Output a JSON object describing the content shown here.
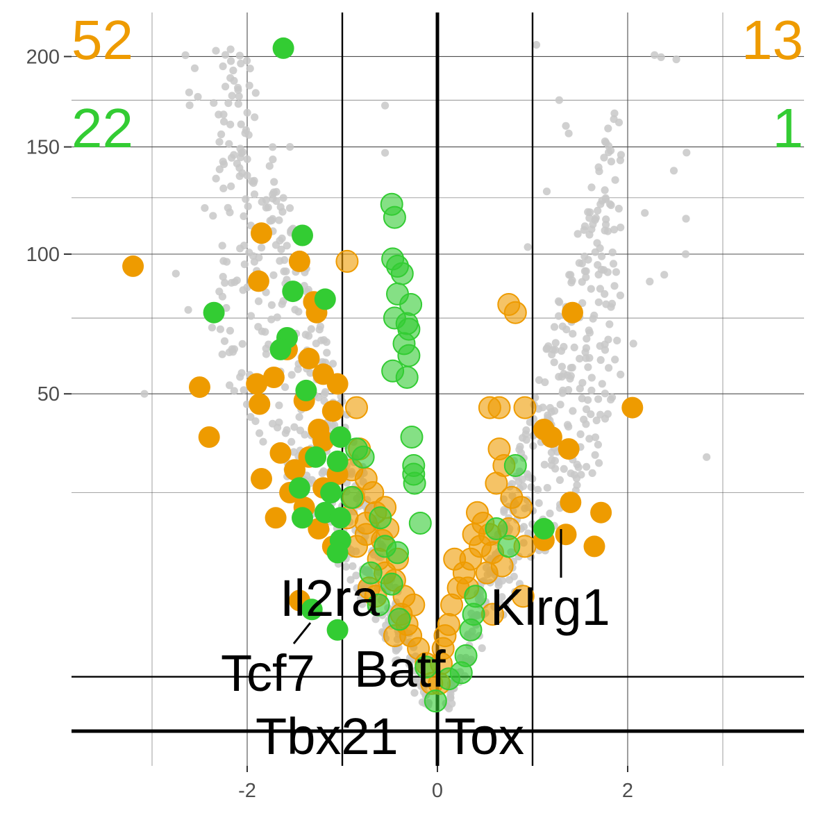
{
  "chart_data": {
    "type": "scatter",
    "title": "",
    "xlabel": "",
    "ylabel": "",
    "xlim": [
      -3.35,
      3.85
    ],
    "ylim": [
      -2,
      210
    ],
    "y_scale": "square-root",
    "grid": true,
    "x_ticks": [
      {
        "value": -2,
        "label": "-2"
      },
      {
        "value": 0,
        "label": "0"
      },
      {
        "value": 2,
        "label": "2"
      }
    ],
    "y_ticks": [
      {
        "value": 50,
        "label": "50"
      },
      {
        "value": 100,
        "label": "100"
      },
      {
        "value": 150,
        "label": "150"
      },
      {
        "value": 200,
        "label": "200"
      }
    ],
    "reference_lines": {
      "vertical": [
        -1,
        0,
        1
      ],
      "horizontal": [
        0,
        1.3
      ]
    },
    "colors": {
      "background_points": "#c8c8c8",
      "highlight_orange": "#ee9b00",
      "highlight_green": "#33cc33",
      "grid": "#4d4d4d",
      "reference": "#000000"
    },
    "corner_counts": [
      {
        "position": "top-left",
        "text": "52",
        "color": "#ee9b00"
      },
      {
        "position": "top-left",
        "text": "22",
        "color": "#33cc33"
      },
      {
        "position": "top-right",
        "text": "13",
        "color": "#ee9b00"
      },
      {
        "position": "top-right",
        "text": "1",
        "color": "#33cc33"
      }
    ],
    "labelled_genes": [
      {
        "gene": "Il2ra",
        "x": -1.32,
        "y": 10
      },
      {
        "gene": "Tcf7",
        "x": -1.32,
        "y": 10
      },
      {
        "gene": "Batf",
        "x": -0.1,
        "y": 2
      },
      {
        "gene": "Tbx21",
        "x": 0,
        "y": 0.6
      },
      {
        "gene": "Tox",
        "x": 0,
        "y": 0.6
      },
      {
        "gene": "Klrg1",
        "x": 1.32,
        "y": 22
      }
    ],
    "series": [
      {
        "group": "orange",
        "color": "#ee9b00",
        "points": [
          [
            -3.2,
            95
          ],
          [
            -1.85,
            109
          ],
          [
            -1.88,
            89
          ],
          [
            -1.45,
            97
          ],
          [
            -1.3,
            81
          ],
          [
            -1.27,
            77
          ],
          [
            -1.35,
            61
          ],
          [
            -2.5,
            52
          ],
          [
            -2.4,
            38
          ],
          [
            -1.9,
            53
          ],
          [
            -1.87,
            47
          ],
          [
            -1.72,
            55
          ],
          [
            -1.58,
            64
          ],
          [
            -1.4,
            48
          ],
          [
            -1.2,
            56
          ],
          [
            -1.05,
            53
          ],
          [
            -1.1,
            45
          ],
          [
            -1.25,
            40
          ],
          [
            -1.65,
            34
          ],
          [
            -1.85,
            28
          ],
          [
            -1.5,
            30
          ],
          [
            -1.35,
            33
          ],
          [
            -1.2,
            37
          ],
          [
            -1.55,
            25
          ],
          [
            -1.4,
            22
          ],
          [
            -1.7,
            20
          ],
          [
            -1.2,
            26
          ],
          [
            -1.05,
            29
          ],
          [
            -1.25,
            18
          ],
          [
            -1.1,
            15
          ],
          [
            -1.45,
            7.5
          ],
          [
            -0.85,
            46
          ],
          [
            -0.82,
            35
          ],
          [
            -0.9,
            30
          ],
          [
            -0.75,
            28
          ],
          [
            -0.68,
            25
          ],
          [
            -0.55,
            22
          ],
          [
            -0.95,
            20
          ],
          [
            -0.75,
            19
          ],
          [
            -0.85,
            15
          ],
          [
            -0.62,
            13
          ],
          [
            -0.55,
            11
          ],
          [
            -0.45,
            10
          ],
          [
            -0.72,
            9
          ],
          [
            -0.65,
            8
          ],
          [
            -0.38,
            6
          ],
          [
            -0.32,
            5
          ],
          [
            -0.28,
            4
          ],
          [
            -0.2,
            3
          ],
          [
            -0.12,
            2
          ],
          [
            -0.06,
            1
          ],
          [
            -0.45,
            4
          ],
          [
            -0.75,
            17
          ],
          [
            -0.58,
            16
          ],
          [
            -0.88,
            24
          ],
          [
            -0.65,
            21
          ],
          [
            -0.95,
            97
          ],
          [
            0.75,
            80
          ],
          [
            0.82,
            77
          ],
          [
            1.42,
            77
          ],
          [
            2.05,
            46
          ],
          [
            0.55,
            46
          ],
          [
            0.65,
            46
          ],
          [
            0.92,
            46
          ],
          [
            1.12,
            40
          ],
          [
            1.2,
            38
          ],
          [
            1.38,
            35
          ],
          [
            0.65,
            35
          ],
          [
            0.7,
            31
          ],
          [
            0.62,
            27
          ],
          [
            0.78,
            24
          ],
          [
            0.88,
            22
          ],
          [
            1.4,
            23
          ],
          [
            1.72,
            21
          ],
          [
            1.35,
            17
          ],
          [
            1.65,
            15
          ],
          [
            1.12,
            16
          ],
          [
            0.92,
            15
          ],
          [
            0.42,
            21
          ],
          [
            0.55,
            17
          ],
          [
            0.45,
            15
          ],
          [
            0.35,
            13
          ],
          [
            0.28,
            11
          ],
          [
            0.22,
            9
          ],
          [
            0.15,
            7
          ],
          [
            0.12,
            5
          ],
          [
            0.08,
            4
          ],
          [
            0.06,
            3
          ],
          [
            0.04,
            2
          ],
          [
            0.02,
            1
          ],
          [
            0.9,
            8
          ],
          [
            0.58,
            6
          ],
          [
            0.48,
            19
          ],
          [
            0.38,
            17
          ],
          [
            0.68,
            12
          ],
          [
            0.52,
            11
          ],
          [
            0.18,
            13
          ],
          [
            0.58,
            14
          ],
          [
            0.75,
            18
          ],
          [
            0.32,
            9
          ],
          [
            -0.35,
            8
          ],
          [
            -0.25,
            7
          ],
          [
            -0.42,
            13
          ],
          [
            -0.52,
            18
          ]
        ]
      },
      {
        "group": "green",
        "color": "#33cc33",
        "points": [
          [
            -1.62,
            205
          ],
          [
            -1.42,
            108
          ],
          [
            -1.52,
            85
          ],
          [
            -1.18,
            82
          ],
          [
            -2.35,
            77
          ],
          [
            -1.58,
            68
          ],
          [
            -1.65,
            64
          ],
          [
            -1.38,
            51
          ],
          [
            -1.02,
            38
          ],
          [
            -1.28,
            33
          ],
          [
            -1.05,
            32
          ],
          [
            -1.45,
            26
          ],
          [
            -1.12,
            25
          ],
          [
            -1.42,
            20
          ],
          [
            -1.18,
            21
          ],
          [
            -1.02,
            20
          ],
          [
            -1.02,
            16
          ],
          [
            -1.05,
            14
          ],
          [
            -1.32,
            6.5
          ],
          [
            -1.05,
            4.5
          ],
          [
            -0.48,
            122
          ],
          [
            -0.45,
            116
          ],
          [
            -0.47,
            98
          ],
          [
            -0.42,
            95
          ],
          [
            -0.37,
            92
          ],
          [
            -0.42,
            84
          ],
          [
            -0.28,
            80
          ],
          [
            -0.45,
            75
          ],
          [
            -0.32,
            73
          ],
          [
            -0.3,
            71
          ],
          [
            -0.35,
            66
          ],
          [
            -0.3,
            62
          ],
          [
            -0.47,
            57
          ],
          [
            -0.32,
            55
          ],
          [
            -0.27,
            38
          ],
          [
            -0.25,
            31
          ],
          [
            -0.25,
            29
          ],
          [
            -0.24,
            27
          ],
          [
            -0.18,
            19
          ],
          [
            -0.55,
            15
          ],
          [
            -0.42,
            14
          ],
          [
            -0.48,
            9.5
          ],
          [
            -0.4,
            5.5
          ],
          [
            -0.7,
            11
          ],
          [
            -0.6,
            20
          ],
          [
            -0.9,
            24
          ],
          [
            -0.85,
            35
          ],
          [
            -0.78,
            33
          ],
          [
            -0.62,
            7
          ],
          [
            -0.12,
            1.8
          ],
          [
            -0.02,
            0.4
          ],
          [
            0.12,
            1.2
          ],
          [
            0.25,
            1.5
          ],
          [
            0.3,
            2.5
          ],
          [
            0.35,
            4.5
          ],
          [
            0.38,
            6
          ],
          [
            0.4,
            8
          ],
          [
            0.62,
            18
          ],
          [
            0.82,
            31
          ],
          [
            0.75,
            15
          ],
          [
            1.12,
            18
          ]
        ]
      }
    ]
  }
}
